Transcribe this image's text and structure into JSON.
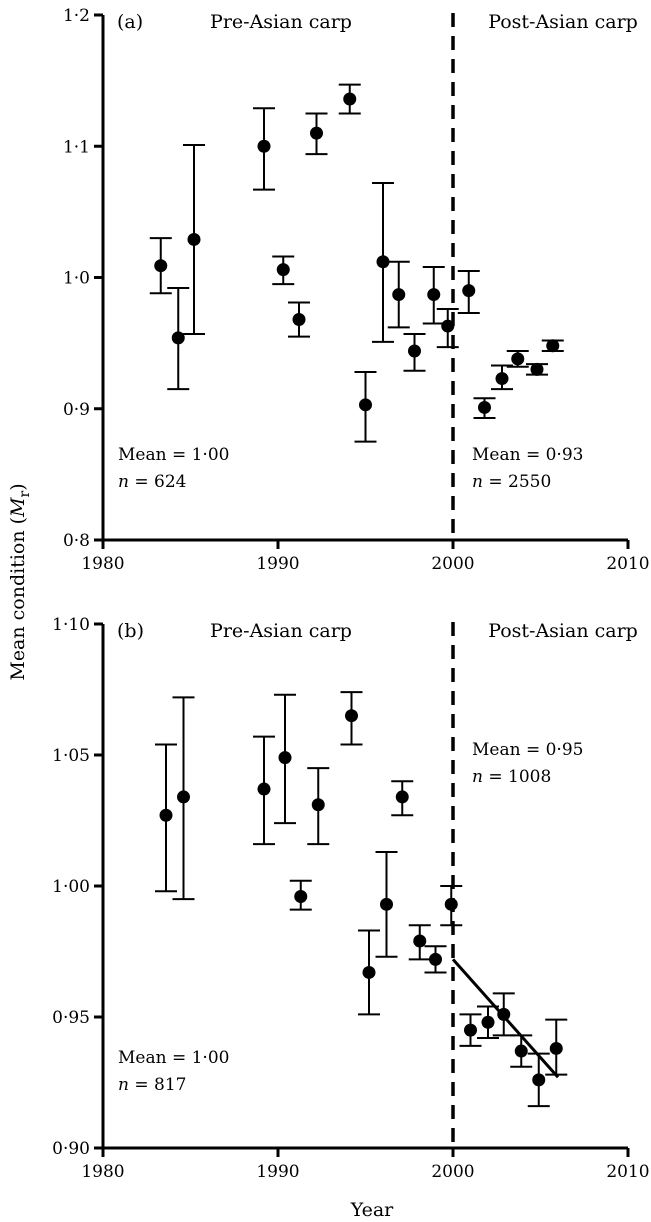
{
  "chart_data": [
    {
      "type": "scatter",
      "panel_label": "(a)",
      "region_labels": {
        "pre": "Pre-Asian carp",
        "post": "Post-Asian carp"
      },
      "xlim": [
        1980,
        2010
      ],
      "ylim": [
        0.8,
        1.2
      ],
      "x_ticks": [
        1980,
        1990,
        2000,
        2010
      ],
      "x_tick_labels": [
        "1980",
        "1990",
        "2000",
        "2010"
      ],
      "y_ticks": [
        0.8,
        0.9,
        1.0,
        1.1,
        1.2
      ],
      "y_tick_labels": [
        "0·8",
        "0·9",
        "1·0",
        "1·1",
        "1·2"
      ],
      "divider_x": 2000,
      "points": [
        {
          "x": 1983.3,
          "y": 1.009,
          "lo": 0.988,
          "hi": 1.03
        },
        {
          "x": 1984.3,
          "y": 0.954,
          "lo": 0.915,
          "hi": 0.992
        },
        {
          "x": 1985.2,
          "y": 1.029,
          "lo": 0.957,
          "hi": 1.101
        },
        {
          "x": 1989.2,
          "y": 1.1,
          "lo": 1.067,
          "hi": 1.129
        },
        {
          "x": 1990.3,
          "y": 1.006,
          "lo": 0.995,
          "hi": 1.016
        },
        {
          "x": 1991.2,
          "y": 0.968,
          "lo": 0.955,
          "hi": 0.981
        },
        {
          "x": 1992.2,
          "y": 1.11,
          "lo": 1.094,
          "hi": 1.125
        },
        {
          "x": 1994.1,
          "y": 1.136,
          "lo": 1.125,
          "hi": 1.147
        },
        {
          "x": 1995.0,
          "y": 0.903,
          "lo": 0.875,
          "hi": 0.928
        },
        {
          "x": 1996.0,
          "y": 1.012,
          "lo": 0.951,
          "hi": 1.072
        },
        {
          "x": 1996.9,
          "y": 0.987,
          "lo": 0.962,
          "hi": 1.012
        },
        {
          "x": 1997.8,
          "y": 0.944,
          "lo": 0.929,
          "hi": 0.957
        },
        {
          "x": 1998.9,
          "y": 0.987,
          "lo": 0.965,
          "hi": 1.008
        },
        {
          "x": 1999.7,
          "y": 0.963,
          "lo": 0.947,
          "hi": 0.976
        },
        {
          "x": 2000.9,
          "y": 0.99,
          "lo": 0.973,
          "hi": 1.005
        },
        {
          "x": 2001.8,
          "y": 0.901,
          "lo": 0.893,
          "hi": 0.908
        },
        {
          "x": 2002.8,
          "y": 0.923,
          "lo": 0.915,
          "hi": 0.933
        },
        {
          "x": 2003.7,
          "y": 0.938,
          "lo": 0.932,
          "hi": 0.944
        },
        {
          "x": 2004.8,
          "y": 0.93,
          "lo": 0.926,
          "hi": 0.934
        },
        {
          "x": 2005.7,
          "y": 0.948,
          "lo": 0.944,
          "hi": 0.952
        }
      ],
      "annotations": {
        "pre_mean": "Mean = 1·00",
        "pre_n_label": "n",
        "pre_n_value": " = 624",
        "post_mean": "Mean = 0·93",
        "post_n_label": "n",
        "post_n_value": " = 2550"
      }
    },
    {
      "type": "scatter",
      "panel_label": "(b)",
      "region_labels": {
        "pre": "Pre-Asian carp",
        "post": "Post-Asian carp"
      },
      "xlim": [
        1980,
        2010
      ],
      "ylim": [
        0.9,
        1.1
      ],
      "x_ticks": [
        1980,
        1990,
        2000,
        2010
      ],
      "x_tick_labels": [
        "1980",
        "1990",
        "2000",
        "2010"
      ],
      "y_ticks": [
        0.9,
        0.95,
        1.0,
        1.05,
        1.1
      ],
      "y_tick_labels": [
        "0·90",
        "0·95",
        "1·00",
        "1·05",
        "1·10"
      ],
      "divider_x": 2000,
      "points": [
        {
          "x": 1983.6,
          "y": 1.027,
          "lo": 0.998,
          "hi": 1.054
        },
        {
          "x": 1984.6,
          "y": 1.034,
          "lo": 0.995,
          "hi": 1.072
        },
        {
          "x": 1989.2,
          "y": 1.037,
          "lo": 1.016,
          "hi": 1.057
        },
        {
          "x": 1990.4,
          "y": 1.049,
          "lo": 1.024,
          "hi": 1.073
        },
        {
          "x": 1991.3,
          "y": 0.996,
          "lo": 0.991,
          "hi": 1.002
        },
        {
          "x": 1992.3,
          "y": 1.031,
          "lo": 1.016,
          "hi": 1.045
        },
        {
          "x": 1994.2,
          "y": 1.065,
          "lo": 1.054,
          "hi": 1.074
        },
        {
          "x": 1995.2,
          "y": 0.967,
          "lo": 0.951,
          "hi": 0.983
        },
        {
          "x": 1996.2,
          "y": 0.993,
          "lo": 0.973,
          "hi": 1.013
        },
        {
          "x": 1997.1,
          "y": 1.034,
          "lo": 1.027,
          "hi": 1.04
        },
        {
          "x": 1998.1,
          "y": 0.979,
          "lo": 0.972,
          "hi": 0.985
        },
        {
          "x": 1999.0,
          "y": 0.972,
          "lo": 0.967,
          "hi": 0.977
        },
        {
          "x": 1999.9,
          "y": 0.993,
          "lo": 0.985,
          "hi": 1.0
        },
        {
          "x": 2001.0,
          "y": 0.945,
          "lo": 0.939,
          "hi": 0.951
        },
        {
          "x": 2002.0,
          "y": 0.948,
          "lo": 0.942,
          "hi": 0.954
        },
        {
          "x": 2002.9,
          "y": 0.951,
          "lo": 0.943,
          "hi": 0.959
        },
        {
          "x": 2003.9,
          "y": 0.937,
          "lo": 0.931,
          "hi": 0.943
        },
        {
          "x": 2004.9,
          "y": 0.926,
          "lo": 0.916,
          "hi": 0.936
        },
        {
          "x": 2005.9,
          "y": 0.938,
          "lo": 0.928,
          "hi": 0.949
        }
      ],
      "trend_line": {
        "x": [
          2000.0,
          2006.0
        ],
        "y": [
          0.972,
          0.927
        ]
      },
      "annotations": {
        "pre_mean": "Mean = 1·00",
        "pre_n_label": "n",
        "pre_n_value": " = 817",
        "post_mean": "Mean = 0·95",
        "post_n_label": "n",
        "post_n_value": " = 1008"
      }
    }
  ],
  "shared": {
    "ylabel_main": "Mean condition (",
    "ylabel_symbol": "M",
    "ylabel_sub": "r",
    "ylabel_close": ")",
    "xlabel": "Year",
    "marker_color": "#000000"
  }
}
